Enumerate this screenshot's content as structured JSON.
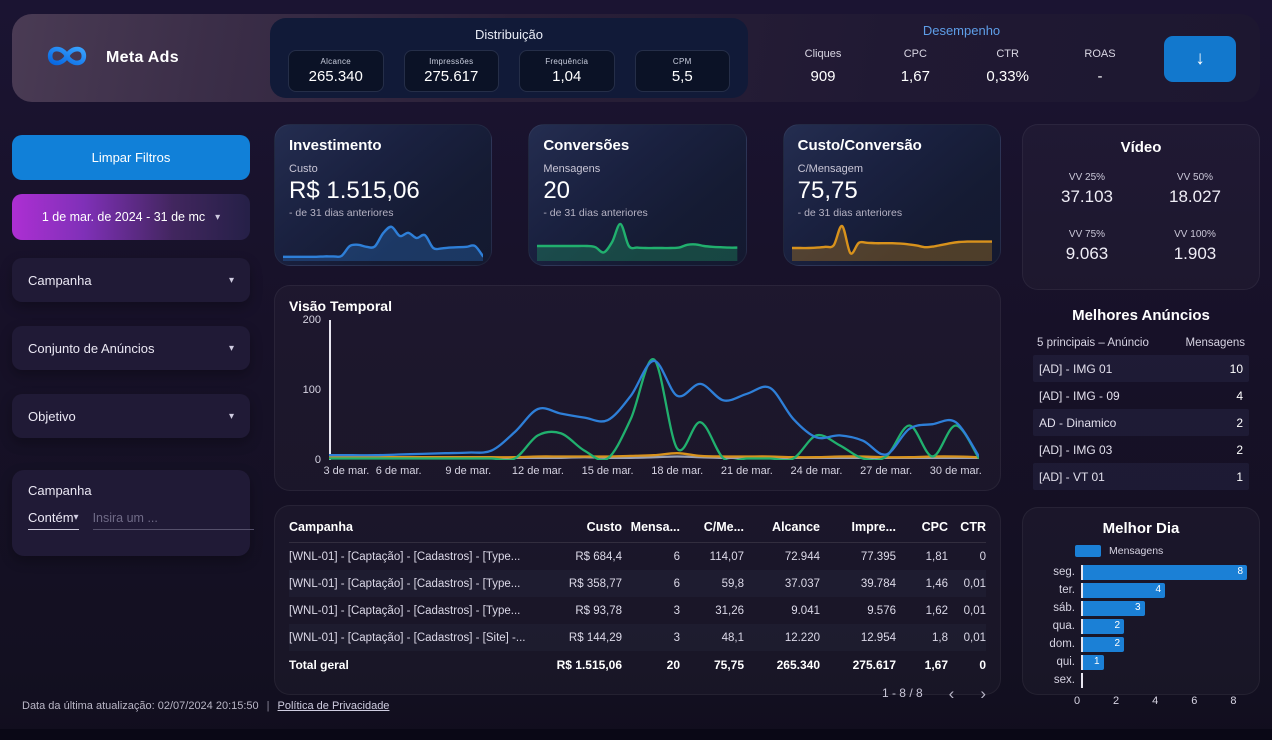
{
  "header": {
    "brand": {
      "name": "Meta Ads"
    },
    "distribution": {
      "title": "Distribuição",
      "metrics": [
        {
          "label": "Alcance",
          "value": "265.340"
        },
        {
          "label": "Impressões",
          "value": "275.617"
        },
        {
          "label": "Frequência",
          "value": "1,04"
        },
        {
          "label": "CPM",
          "value": "5,5"
        }
      ]
    },
    "performance": {
      "title": "Desempenho",
      "title_color": "#5e9ee8",
      "metrics": [
        {
          "label": "Cliques",
          "value": "909"
        },
        {
          "label": "CPC",
          "value": "1,67"
        },
        {
          "label": "CTR",
          "value": "0,33%"
        },
        {
          "label": "ROAS",
          "value": "-"
        }
      ],
      "download_icon": "↓"
    }
  },
  "sidebar": {
    "clear_filters_label": "Limpar Filtros",
    "date_range_value": "1 de mar. de 2024 - 31 de mc",
    "dropdowns": [
      {
        "label": "Campanha"
      },
      {
        "label": "Conjunto de Anúncios"
      },
      {
        "label": "Objetivo"
      }
    ],
    "advanced_filter": {
      "title": "Campanha",
      "operator_value": "Contém",
      "input_placeholder": "Insira um ..."
    }
  },
  "scorecards": [
    {
      "title": "Investimento",
      "label": "Custo",
      "value": "R$ 1.515,06",
      "subtext": "- de 31 dias anteriores",
      "color": "#2e7fd8",
      "spark": "investimento-sparkline"
    },
    {
      "title": "Conversões",
      "label": "Mensagens",
      "value": "20",
      "subtext": "- de 31 dias anteriores",
      "color": "#21b06e",
      "spark": "conversoes-sparkline"
    },
    {
      "title": "Custo/Conversão",
      "label": "C/Mensagem",
      "value": "75,75",
      "subtext": "- de 31 dias anteriores",
      "color": "#d8921c",
      "spark": "custo-conversao-sparkline"
    }
  ],
  "video": {
    "title": "Vídeo",
    "metrics": [
      {
        "label": "VV 25%",
        "value": "37.103"
      },
      {
        "label": "VV 50%",
        "value": "18.027"
      },
      {
        "label": "VV 75%",
        "value": "9.063"
      },
      {
        "label": "VV 100%",
        "value": "1.903"
      }
    ]
  },
  "best_ads": {
    "title": "Melhores Anúncios",
    "col1": "5 principais – Anúncio",
    "col2": "Mensagens",
    "rows": [
      {
        "name": "[AD] - IMG 01",
        "value": "10"
      },
      {
        "name": "[AD] - IMG - 09",
        "value": "4"
      },
      {
        "name": "AD - Dinamico",
        "value": "2"
      },
      {
        "name": "[AD] - IMG 03",
        "value": "2"
      },
      {
        "name": "[AD] - VT 01",
        "value": "1"
      }
    ]
  },
  "table": {
    "columns": [
      "Campanha",
      "Custo",
      "Mensa...",
      "C/Me...",
      "Alcance",
      "Impre...",
      "CPC",
      "CTR"
    ],
    "rows": [
      [
        "[WNL-01] - [Captação] - [Cadastros] - [Type...",
        "R$ 684,4",
        "6",
        "114,07",
        "72.944",
        "77.395",
        "1,81",
        "0"
      ],
      [
        "[WNL-01] - [Captação] - [Cadastros] - [Type...",
        "R$ 358,77",
        "6",
        "59,8",
        "37.037",
        "39.784",
        "1,46",
        "0,01"
      ],
      [
        "[WNL-01] - [Captação] - [Cadastros] - [Type...",
        "R$ 93,78",
        "3",
        "31,26",
        "9.041",
        "9.576",
        "1,62",
        "0,01"
      ],
      [
        "[WNL-01] - [Captação] - [Cadastros] - [Site] -...",
        "R$ 144,29",
        "3",
        "48,1",
        "12.220",
        "12.954",
        "1,8",
        "0,01"
      ]
    ],
    "total_row": [
      "Total geral",
      "R$ 1.515,06",
      "20",
      "75,75",
      "265.340",
      "275.617",
      "1,67",
      "0"
    ],
    "pagination": {
      "label": "1 - 8 / 8",
      "prev": "‹",
      "next": "›"
    }
  },
  "footer": {
    "updated_text": "Data da última atualização: 02/07/2024 20:15:50",
    "separator": "|",
    "privacy_link": "Política de Privacidade"
  },
  "chart_data": [
    {
      "name": "investimento-sparkline",
      "type": "area",
      "color": "#2e7fd8",
      "values": [
        3,
        3,
        3,
        3,
        3,
        4,
        4,
        5,
        30,
        33,
        28,
        29,
        62,
        78,
        55,
        63,
        50,
        57,
        25,
        24,
        26,
        27,
        28,
        30,
        3
      ]
    },
    {
      "name": "conversoes-sparkline",
      "type": "area",
      "color": "#21b06e",
      "values": [
        30,
        30,
        30,
        30,
        30,
        30,
        30,
        27,
        14,
        40,
        85,
        30,
        26,
        25,
        25,
        25,
        25,
        26,
        33,
        34,
        30,
        28,
        27,
        26,
        26
      ]
    },
    {
      "name": "custo-conversao-sparkline",
      "type": "area",
      "color": "#d8921c",
      "values": [
        25,
        25,
        25,
        26,
        28,
        32,
        80,
        12,
        38,
        38,
        37,
        37,
        37,
        36,
        34,
        31,
        27,
        29,
        33,
        37,
        40,
        41,
        41,
        41,
        41
      ]
    },
    {
      "name": "visao-temporal",
      "type": "line",
      "title": "Visão Temporal",
      "ylim": [
        0,
        200
      ],
      "yticks": [
        0,
        100,
        200
      ],
      "x_day_range": [
        3,
        31
      ],
      "xticks": [
        {
          "day": 3,
          "label": "3 de mar."
        },
        {
          "day": 6,
          "label": "6 de mar."
        },
        {
          "day": 9,
          "label": "9 de mar."
        },
        {
          "day": 12,
          "label": "12 de mar."
        },
        {
          "day": 15,
          "label": "15 de mar."
        },
        {
          "day": 18,
          "label": "18 de mar."
        },
        {
          "day": 21,
          "label": "21 de mar."
        },
        {
          "day": 24,
          "label": "24 de mar."
        },
        {
          "day": 27,
          "label": "27 de mar."
        },
        {
          "day": 30,
          "label": "30 de mar."
        }
      ],
      "series": [
        {
          "name": "serie-cinza",
          "color": "#9aa0b2",
          "values": [
            1,
            1,
            1,
            1,
            1,
            1,
            1,
            1,
            1,
            1,
            1,
            2,
            1,
            1,
            2,
            3,
            2,
            1,
            1,
            1,
            1,
            1,
            1,
            1,
            1,
            1,
            1,
            1,
            1
          ]
        },
        {
          "name": "serie-laranja",
          "color": "#d8921c",
          "values": [
            2,
            2,
            2,
            2,
            2,
            2,
            2,
            2,
            2,
            3,
            3,
            3,
            3,
            4,
            5,
            8,
            4,
            3,
            3,
            3,
            2,
            2,
            3,
            3,
            2,
            2,
            3,
            3,
            2
          ]
        },
        {
          "name": "serie-verde",
          "color": "#21b06e",
          "values": [
            0,
            0,
            0,
            0,
            0,
            0,
            0,
            0,
            0,
            35,
            38,
            12,
            0,
            60,
            150,
            15,
            55,
            0,
            0,
            0,
            0,
            35,
            20,
            0,
            3,
            50,
            3,
            50,
            0
          ]
        },
        {
          "name": "serie-azul",
          "color": "#2e7fd8",
          "values": [
            5,
            5,
            5,
            6,
            7,
            8,
            9,
            12,
            40,
            75,
            68,
            62,
            58,
            95,
            148,
            95,
            113,
            88,
            98,
            107,
            60,
            32,
            35,
            27,
            6,
            45,
            52,
            55,
            3
          ]
        }
      ]
    },
    {
      "name": "melhor-dia",
      "type": "bar",
      "title": "Melhor Dia",
      "legend": "Mensagens",
      "color": "#1b80d6",
      "orientation": "horizontal",
      "categories": [
        "seg.",
        "ter.",
        "sáb.",
        "qua.",
        "dom.",
        "qui.",
        "sex."
      ],
      "values": [
        8,
        4,
        3,
        2,
        2,
        1,
        0
      ],
      "xlim": [
        0,
        8
      ],
      "xticks": [
        0,
        2,
        4,
        6,
        8
      ]
    }
  ]
}
